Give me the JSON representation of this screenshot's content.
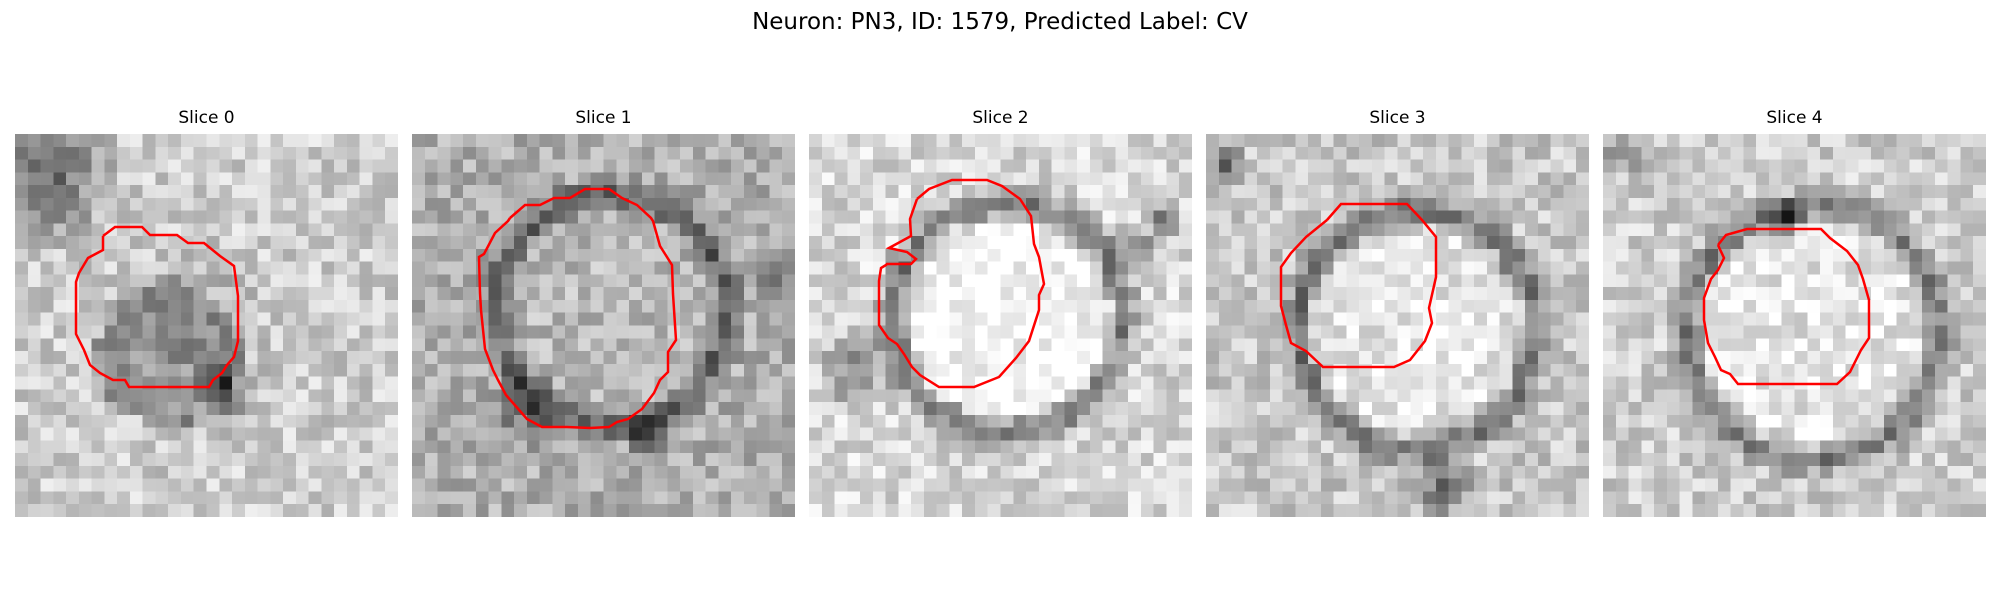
{
  "figure": {
    "title": "Neuron: PN3, ID: 1579, Predicted Label: CV"
  },
  "panels": [
    {
      "title": "Slice 0"
    },
    {
      "title": "Slice 1"
    },
    {
      "title": "Slice 2"
    },
    {
      "title": "Slice 3"
    },
    {
      "title": "Slice 4"
    }
  ],
  "colors": {
    "contour": "#ff0000",
    "colormap": "grayscale (dark = high density)"
  }
}
